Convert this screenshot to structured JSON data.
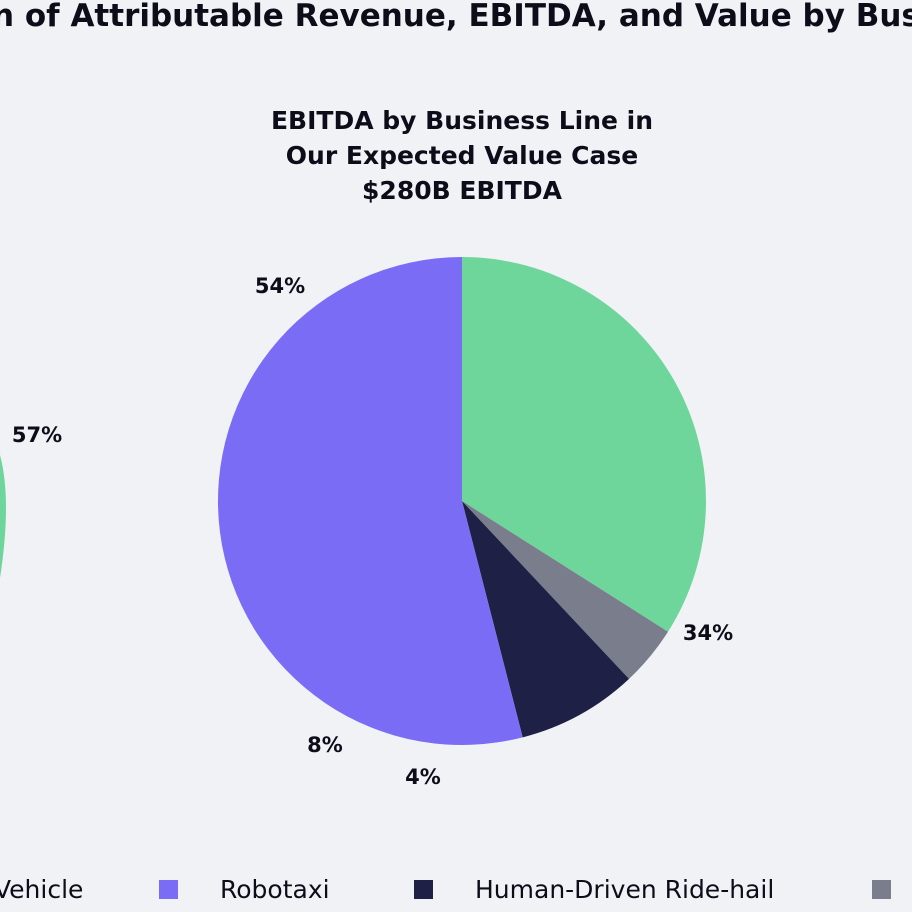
{
  "page_title": "n of Attributable Revenue, EBITDA, and Value by Busine",
  "left_chart_partial": {
    "visible_label": "57%",
    "visible_color": "#6fd69b"
  },
  "chart_data": {
    "type": "pie",
    "title_lines": [
      "EBITDA by Business Line in",
      "Our Expected Value Case",
      "$280B EBITDA"
    ],
    "slices": [
      {
        "name": "Robotaxi",
        "value": 54,
        "label": "54%",
        "color": "#7b6cf6"
      },
      {
        "name": "",
        "value": 34,
        "label": "34%",
        "color": "#6fd69b"
      },
      {
        "name": "",
        "value": 4,
        "label": "4%",
        "color": "#7a7d8c"
      },
      {
        "name": "Human-Driven Ride-hail",
        "value": 8,
        "label": "8%",
        "color": "#1f2045"
      }
    ],
    "order_note": "clockwise from 12 o'clock: 34%, 4%, 8%, 54%"
  },
  "legend": {
    "items": [
      {
        "label": "Vehicle",
        "color": "#6fd69b"
      },
      {
        "label": "Robotaxi",
        "color": "#7b6cf6"
      },
      {
        "label": "Human-Driven Ride-hail",
        "color": "#1f2045"
      },
      {
        "label": "",
        "color": "#7a7d8c"
      }
    ]
  }
}
